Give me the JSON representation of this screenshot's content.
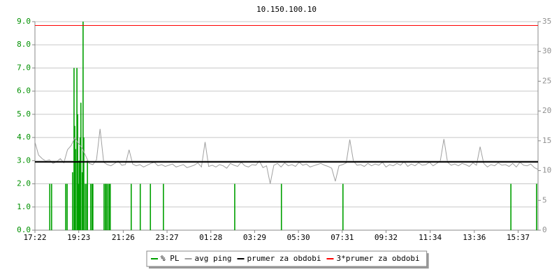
{
  "chart_data": {
    "type": "line",
    "title": "10.150.100.10",
    "xlim": [
      0,
      1390
    ],
    "xticks": [
      {
        "value": 0,
        "label": "17:22"
      },
      {
        "value": 121,
        "label": "19:23"
      },
      {
        "value": 244,
        "label": "21:26"
      },
      {
        "value": 365,
        "label": "23:27"
      },
      {
        "value": 486,
        "label": "01:28"
      },
      {
        "value": 607,
        "label": "03:29"
      },
      {
        "value": 728,
        "label": "05:30"
      },
      {
        "value": 849,
        "label": "07:31"
      },
      {
        "value": 970,
        "label": "09:32"
      },
      {
        "value": 1092,
        "label": "11:34"
      },
      {
        "value": 1214,
        "label": "13:36"
      },
      {
        "value": 1335,
        "label": "15:37"
      }
    ],
    "ylim": [
      0,
      9
    ],
    "yticks": [
      {
        "value": 0,
        "label": "0.0"
      },
      {
        "value": 1,
        "label": "1.0"
      },
      {
        "value": 2,
        "label": "2.0"
      },
      {
        "value": 3,
        "label": "3.0"
      },
      {
        "value": 4,
        "label": "4.0"
      },
      {
        "value": 5,
        "label": "5.0"
      },
      {
        "value": 6,
        "label": "6.0"
      },
      {
        "value": 7,
        "label": "7.0"
      },
      {
        "value": 8,
        "label": "8.0"
      },
      {
        "value": 9,
        "label": "9.0"
      }
    ],
    "y_color": "#009000",
    "y2lim": [
      0,
      35
    ],
    "y2ticks": [
      0,
      5,
      10,
      15,
      20,
      25,
      30,
      35
    ],
    "y2_color": "#909090",
    "grid": true,
    "legend": "bottom",
    "series": [
      {
        "name": "% PL",
        "color": "#00a000",
        "style": "bars",
        "x": [
          41,
          46,
          85,
          89,
          104,
          108,
          110,
          112,
          116,
          118,
          120,
          122,
          125,
          127,
          131,
          133,
          135,
          139,
          143,
          145,
          154,
          158,
          160,
          191,
          195,
          197,
          201,
          205,
          208,
          266,
          291,
          319,
          355,
          552,
          681,
          851,
          1315,
          1386
        ],
        "values": [
          2,
          2,
          2,
          2,
          2.5,
          7,
          4.5,
          3.5,
          7,
          5,
          2,
          3,
          4,
          5.5,
          2.5,
          9,
          4,
          2,
          2,
          3,
          2,
          2,
          2,
          2,
          2,
          2,
          2,
          2,
          2,
          2,
          2,
          2,
          2,
          2,
          2,
          2,
          2,
          2
        ]
      },
      {
        "name": "avg ping",
        "color": "#a0a0a0",
        "style": "line",
        "axis": "y2",
        "x": [
          0,
          10,
          20,
          30,
          40,
          50,
          60,
          70,
          80,
          90,
          100,
          110,
          120,
          130,
          140,
          150,
          160,
          170,
          180,
          190,
          200,
          210,
          220,
          230,
          240,
          250,
          260,
          270,
          280,
          290,
          300,
          310,
          320,
          330,
          340,
          350,
          360,
          370,
          380,
          390,
          400,
          410,
          420,
          430,
          440,
          450,
          460,
          470,
          480,
          490,
          500,
          510,
          520,
          530,
          540,
          550,
          560,
          570,
          580,
          590,
          600,
          610,
          620,
          630,
          640,
          650,
          660,
          670,
          680,
          690,
          700,
          710,
          720,
          730,
          740,
          750,
          760,
          770,
          780,
          790,
          800,
          810,
          820,
          830,
          840,
          850,
          860,
          870,
          880,
          890,
          900,
          910,
          920,
          930,
          940,
          950,
          960,
          970,
          980,
          990,
          1000,
          1010,
          1020,
          1030,
          1040,
          1050,
          1060,
          1070,
          1080,
          1090,
          1100,
          1110,
          1120,
          1130,
          1140,
          1150,
          1160,
          1170,
          1180,
          1190,
          1200,
          1210,
          1220,
          1230,
          1240,
          1250,
          1260,
          1270,
          1280,
          1290,
          1300,
          1310,
          1320,
          1330,
          1340,
          1350,
          1360,
          1370,
          1380,
          1390
        ],
        "values": [
          14.8,
          12.6,
          12.0,
          11.6,
          11.8,
          11.2,
          11.5,
          12.0,
          11.3,
          13.5,
          14.2,
          15.5,
          14.6,
          13.8,
          12.5,
          11.2,
          11.0,
          11.8,
          17.0,
          11.4,
          11.0,
          10.8,
          11.2,
          11.6,
          10.9,
          11.0,
          13.5,
          11.1,
          10.8,
          11.0,
          10.6,
          10.9,
          11.2,
          11.4,
          10.8,
          11.0,
          10.7,
          10.9,
          11.1,
          10.6,
          10.8,
          11.0,
          10.5,
          10.7,
          10.9,
          11.3,
          10.6,
          14.8,
          10.7,
          10.9,
          10.6,
          11.0,
          10.8,
          10.4,
          11.2,
          10.9,
          10.7,
          11.4,
          10.8,
          10.6,
          11.0,
          10.9,
          11.6,
          10.5,
          10.8,
          7.8,
          10.9,
          11.2,
          10.6,
          11.3,
          10.8,
          11.0,
          10.7,
          11.4,
          10.9,
          11.1,
          10.6,
          10.8,
          11.0,
          11.2,
          10.9,
          10.7,
          10.4,
          8.2,
          10.8,
          11.0,
          11.3,
          15.2,
          11.6,
          10.9,
          11.0,
          10.7,
          11.2,
          10.8,
          11.1,
          10.9,
          11.4,
          10.6,
          11.0,
          10.8,
          11.2,
          10.9,
          11.5,
          10.7,
          11.1,
          10.8,
          11.3,
          10.9,
          11.0,
          11.4,
          10.8,
          11.2,
          11.6,
          15.3,
          11.4,
          10.9,
          11.1,
          10.8,
          11.2,
          11.0,
          10.7,
          11.3,
          10.9,
          14.0,
          11.2,
          10.6,
          11.0,
          10.8,
          11.3,
          10.9,
          11.0,
          10.7,
          11.2,
          10.6,
          11.4,
          10.9,
          10.8,
          11.1,
          10.5,
          10.2
        ]
      },
      {
        "name": "prumer za obdobi",
        "color": "#000000",
        "style": "hline",
        "axis": "y2",
        "values": [
          11.45
        ]
      },
      {
        "name": "3*prumer za obdobi",
        "color": "#ff0000",
        "style": "hline",
        "axis": "y2",
        "values": [
          34.35
        ]
      }
    ]
  }
}
